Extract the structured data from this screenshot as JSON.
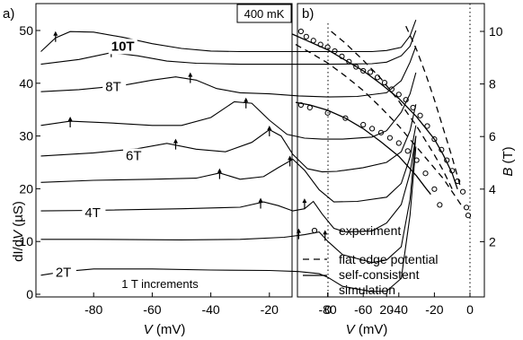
{
  "chart_data": [
    {
      "panel": "a)",
      "type": "line",
      "xlabel": "V (mV)",
      "ylabel": "dI/dV (µS)",
      "xlim": [
        -100,
        30
      ],
      "ylim": [
        0,
        52
      ],
      "xticks": [
        -80,
        -60,
        -40,
        -20,
        0,
        20
      ],
      "yticks": [
        0,
        10,
        20,
        30,
        40,
        50
      ],
      "vline_x": 0,
      "temperature_label": "400 mK",
      "footnote": "1 T increments",
      "curve_labels": [
        {
          "text": "2T",
          "field_T": 2
        },
        {
          "text": "4T",
          "field_T": 4
        },
        {
          "text": "6T",
          "field_T": 6
        },
        {
          "text": "8T",
          "field_T": 8
        },
        {
          "text": "10T",
          "field_T": 10
        }
      ],
      "series": [
        {
          "field_T": 2,
          "x": [
            -98,
            -90,
            -80,
            -60,
            -40,
            -20,
            -10,
            -3,
            0,
            5,
            15,
            20,
            25,
            28,
            30
          ],
          "y": [
            3.6,
            4.3,
            4.8,
            4.8,
            4.6,
            4.5,
            4.3,
            3.9,
            3.2,
            1.5,
            0.5,
            0.6,
            3,
            15,
            28
          ]
        },
        {
          "field_T": 3,
          "x": [
            -98,
            -80,
            -50,
            -30,
            -15,
            -8,
            -3,
            0,
            5,
            15,
            20,
            25,
            28,
            30
          ],
          "y": [
            10.4,
            10.4,
            10.3,
            10.4,
            10.8,
            11.3,
            11.8,
            10,
            7.5,
            6,
            6.5,
            9,
            18,
            30
          ]
        },
        {
          "field_T": 4,
          "x": [
            -98,
            -80,
            -50,
            -30,
            -22,
            -17,
            -12,
            -8,
            -5,
            -2,
            2,
            6,
            15,
            20,
            25,
            28,
            30
          ],
          "y": [
            15.8,
            15.9,
            16.2,
            16.5,
            17.5,
            16.8,
            15.8,
            16.2,
            17.6,
            15.2,
            12.5,
            11.8,
            12,
            13.5,
            17,
            23,
            30
          ]
        },
        {
          "field_T": 5,
          "x": [
            -98,
            -80,
            -60,
            -45,
            -37,
            -30,
            -22,
            -17,
            -12,
            -8,
            -3,
            2,
            10,
            20,
            25,
            28,
            30
          ],
          "y": [
            21.2,
            21.6,
            21.8,
            22,
            23,
            21.8,
            22.3,
            24,
            25.6,
            23.5,
            19.8,
            17.5,
            17.6,
            18.4,
            21,
            26,
            32
          ]
        },
        {
          "field_T": 6,
          "x": [
            -98,
            -80,
            -65,
            -55,
            -45,
            -35,
            -26,
            -20,
            -16,
            -12,
            -7,
            -2,
            3,
            12,
            20,
            25,
            28,
            30
          ],
          "y": [
            26.2,
            26.8,
            27.6,
            28.6,
            27.5,
            27,
            28.8,
            31.2,
            30,
            26.5,
            23.8,
            23.2,
            23.3,
            24,
            25,
            27,
            31,
            36
          ]
        },
        {
          "field_T": 7,
          "x": [
            -98,
            -88,
            -75,
            -60,
            -50,
            -40,
            -32,
            -26,
            -20,
            -14,
            -8,
            -2,
            5,
            15,
            20,
            25,
            28,
            30
          ],
          "y": [
            32,
            32.8,
            32.5,
            32,
            32,
            33.5,
            36.5,
            36.2,
            33,
            30.3,
            29.6,
            29.4,
            29.4,
            29.8,
            31,
            34.5,
            38,
            42
          ]
        },
        {
          "field_T": 8,
          "x": [
            -98,
            -85,
            -70,
            -60,
            -52,
            -45,
            -38,
            -30,
            -20,
            -10,
            0,
            10,
            20,
            25,
            28,
            30
          ],
          "y": [
            38.4,
            38.8,
            39.6,
            40.6,
            41.2,
            40.6,
            39,
            38.2,
            38,
            37.6,
            37.4,
            37.5,
            38.2,
            40.5,
            44,
            47
          ]
        },
        {
          "field_T": 9,
          "x": [
            -98,
            -85,
            -74,
            -65,
            -55,
            -45,
            -30,
            -15,
            0,
            15,
            20,
            25,
            28,
            30
          ],
          "y": [
            43.6,
            44.5,
            45.8,
            45.2,
            44.2,
            43.8,
            43.6,
            43.6,
            43.6,
            43.7,
            44,
            45.2,
            47,
            50
          ]
        },
        {
          "field_T": 10,
          "x": [
            -98,
            -93,
            -88,
            -80,
            -70,
            -60,
            -50,
            -40,
            -30,
            -20,
            -10,
            0,
            15,
            20,
            25,
            28,
            30
          ],
          "y": [
            46,
            48.6,
            49.8,
            49.7,
            48.7,
            47.5,
            46.6,
            46.1,
            46,
            46,
            46,
            46,
            46,
            46.2,
            46.8,
            49,
            52
          ]
        }
      ],
      "arrows": [
        {
          "x": -93,
          "y": 49.2
        },
        {
          "x": -74,
          "y": 46.3
        },
        {
          "x": -47,
          "y": 41.4
        },
        {
          "x": -88,
          "y": 33
        },
        {
          "x": -28,
          "y": 36.6
        },
        {
          "x": -52,
          "y": 28.8
        },
        {
          "x": -20,
          "y": 31.3
        },
        {
          "x": -37,
          "y": 23.2
        },
        {
          "x": -13,
          "y": 25.6
        },
        {
          "x": -23,
          "y": 17.6
        },
        {
          "x": -8,
          "y": 17.5
        },
        {
          "x": -10,
          "y": 11.8
        },
        {
          "x": -1,
          "y": 11.5
        }
      ]
    },
    {
      "panel": "b)",
      "type": "scatter",
      "xlabel": "V (mV)",
      "ylabel": "B (T)",
      "xlim": [
        -100,
        5
      ],
      "ylim": [
        0,
        11
      ],
      "xticks": [
        -80,
        -60,
        -40,
        -20,
        0
      ],
      "yticks": [
        2,
        4,
        6,
        8,
        10
      ],
      "vline_x": 0,
      "legend": [
        {
          "marker": "circle",
          "label": "experiment"
        },
        {
          "marker": "dash",
          "label": "flat edge potential"
        },
        {
          "marker": "solid",
          "label": "self-consistent\nsimulation"
        }
      ],
      "experiment_upper": {
        "x": [
          -95,
          -92,
          -88,
          -84,
          -80,
          -76,
          -72,
          -68,
          -64,
          -60,
          -56,
          -52,
          -48,
          -44,
          -40,
          -36,
          -32,
          -28,
          -24,
          -20,
          -16,
          -13,
          -10,
          -7,
          -4
        ],
        "y": [
          10.0,
          9.8,
          9.65,
          9.5,
          9.4,
          9.25,
          9.05,
          8.85,
          8.65,
          8.5,
          8.45,
          8.25,
          8.05,
          7.8,
          7.6,
          7.4,
          7.1,
          6.8,
          6.4,
          5.9,
          5.5,
          5.1,
          4.7,
          4.3,
          3.9
        ]
      },
      "experiment_lower": {
        "x": [
          -95,
          -90,
          -80,
          -70,
          -60,
          -55,
          -50,
          -45,
          -40,
          -35,
          -30,
          -25,
          -20,
          -17
        ],
        "y": [
          7.2,
          7.1,
          6.9,
          6.7,
          6.45,
          6.3,
          6.15,
          5.95,
          5.75,
          5.45,
          5.1,
          4.6,
          4.0,
          3.4
        ]
      },
      "experiment_tail": {
        "x": [
          -2,
          -1
        ],
        "y": [
          3.3,
          3.0
        ]
      },
      "simulation": [
        {
          "x": [
            -100,
            -90,
            -80,
            -70,
            -60,
            -50,
            -40,
            -30,
            -20,
            -15,
            -10,
            -7
          ],
          "y": [
            9.9,
            9.6,
            9.3,
            8.9,
            8.5,
            8.0,
            7.45,
            6.75,
            5.9,
            5.3,
            4.6,
            4.0
          ]
        },
        {
          "x": [
            -98,
            -90,
            -80,
            -70,
            -60,
            -50,
            -40,
            -30,
            -25,
            -22
          ],
          "y": [
            7.3,
            7.2,
            7.0,
            6.7,
            6.3,
            5.8,
            5.25,
            4.5,
            4.05,
            3.8
          ]
        }
      ],
      "flat_edge": [
        {
          "x": [
            -98,
            -90,
            -80,
            -70,
            -60,
            -50,
            -40,
            -30,
            -20,
            -15,
            -10,
            -5
          ],
          "y": [
            9.5,
            9.2,
            8.8,
            8.3,
            7.75,
            7.1,
            6.4,
            5.6,
            4.8,
            4.4,
            3.9,
            3.4
          ]
        },
        {
          "x": [
            -78,
            -70,
            -60,
            -50,
            -40,
            -30,
            -20,
            -15,
            -10
          ],
          "y": [
            10.0,
            9.55,
            8.9,
            8.2,
            7.35,
            6.4,
            5.3,
            4.7,
            4.0
          ]
        },
        {
          "x": [
            -36,
            -30,
            -25,
            -20,
            -15,
            -10,
            -5
          ],
          "y": [
            10.2,
            9.3,
            8.4,
            7.4,
            6.3,
            5.2,
            4.0
          ]
        }
      ]
    }
  ]
}
